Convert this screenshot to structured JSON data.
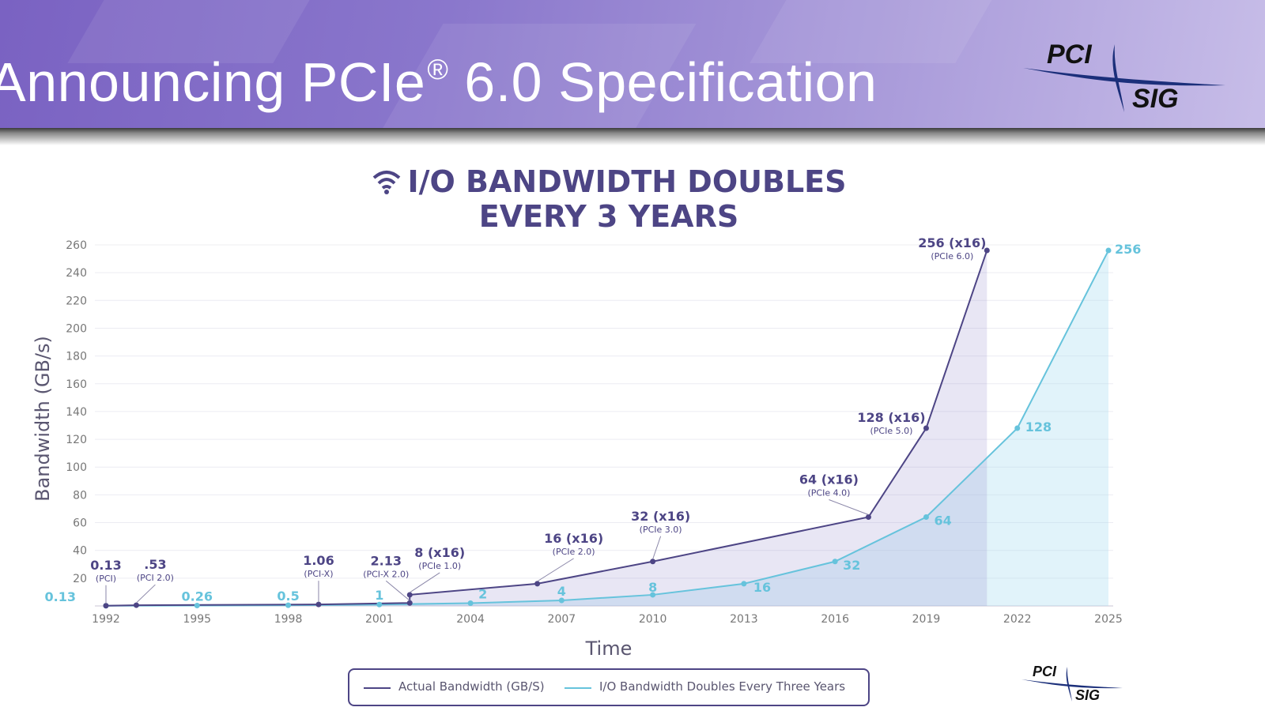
{
  "banner": {
    "title": "Announcing PCIe",
    "registered": "®",
    "title_suffix": " 6.0 Specification"
  },
  "logo": {
    "line1": "PCI",
    "line2": "SIG"
  },
  "colors": {
    "actual": "#4d4585",
    "doubling": "#66c3dc",
    "title": "#4d4585",
    "axis_text": "#777777"
  },
  "chart_data": {
    "type": "line",
    "title": [
      "I/O BANDWIDTH DOUBLES",
      "EVERY 3 YEARS"
    ],
    "xlabel": "Time",
    "ylabel": "Bandwidth (GB/s)",
    "xlim": [
      1992,
      2025
    ],
    "ylim": [
      0,
      260
    ],
    "xticks": [
      "1992",
      "1995",
      "1998",
      "2001",
      "2004",
      "2007",
      "2010",
      "2013",
      "2016",
      "2019",
      "2022",
      "2025"
    ],
    "yticks": [
      "20",
      "40",
      "60",
      "80",
      "100",
      "120",
      "140",
      "160",
      "180",
      "200",
      "220",
      "240",
      "260"
    ],
    "grid": true,
    "series": [
      {
        "name": "Actual Bandwidth (GB/S)",
        "points": [
          {
            "x": 1992,
            "y": 0.13,
            "label": "0.13",
            "sub": "(PCI)"
          },
          {
            "x": 1993,
            "y": 0.53,
            "label": ".53",
            "sub": "(PCI 2.0)"
          },
          {
            "x": 1999,
            "y": 1.06,
            "label": "1.06",
            "sub": "(PCI-X)"
          },
          {
            "x": 2002,
            "y": 2.13,
            "label": "2.13",
            "sub": "(PCI-X 2.0)"
          },
          {
            "x": 2002,
            "y": 8,
            "label": "8 (x16)",
            "sub": "(PCIe 1.0)"
          },
          {
            "x": 2006.2,
            "y": 16,
            "label": "16 (x16)",
            "sub": "(PCIe 2.0)"
          },
          {
            "x": 2010,
            "y": 32,
            "label": "32 (x16)",
            "sub": "(PCIe 3.0)"
          },
          {
            "x": 2017.1,
            "y": 64,
            "label": "64 (x16)",
            "sub": "(PCIe 4.0)"
          },
          {
            "x": 2019,
            "y": 128,
            "label": "128 (x16)",
            "sub": "(PCIe 5.0)"
          },
          {
            "x": 2021,
            "y": 256,
            "label": "256 (x16)",
            "sub": "(PCIe 6.0)"
          }
        ]
      },
      {
        "name": "I/O Bandwidth Doubles Every Three Years",
        "points": [
          {
            "x": 1992,
            "y": 0.13,
            "label": "0.13"
          },
          {
            "x": 1995,
            "y": 0.26,
            "label": "0.26"
          },
          {
            "x": 1998,
            "y": 0.5,
            "label": "0.5"
          },
          {
            "x": 2001,
            "y": 1,
            "label": "1"
          },
          {
            "x": 2004,
            "y": 2,
            "label": "2"
          },
          {
            "x": 2007,
            "y": 4,
            "label": "4"
          },
          {
            "x": 2010,
            "y": 8,
            "label": "8"
          },
          {
            "x": 2013,
            "y": 16,
            "label": "16"
          },
          {
            "x": 2016,
            "y": 32,
            "label": "32"
          },
          {
            "x": 2019,
            "y": 64,
            "label": "64"
          },
          {
            "x": 2022,
            "y": 128,
            "label": "128"
          },
          {
            "x": 2025,
            "y": 256,
            "label": "256"
          }
        ]
      }
    ],
    "legend": [
      "Actual Bandwidth (GB/S)",
      "I/O Bandwidth Doubles Every Three Years"
    ],
    "legend_position": "bottom"
  }
}
